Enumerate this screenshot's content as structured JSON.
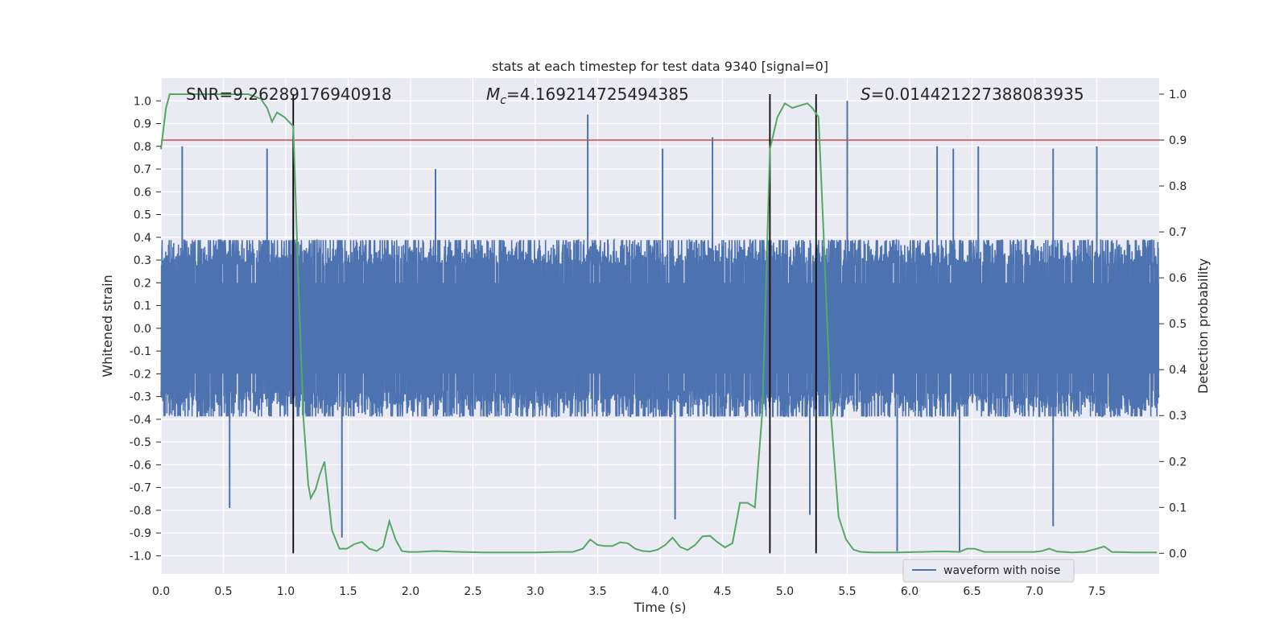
{
  "chart_data": {
    "type": "line",
    "title": "stats at each timestep for test data 9340 [signal=0]",
    "xlabel": "Time (s)",
    "ylabel": "Whitened strain",
    "ylabel_right": "Detection probability",
    "xlim": [
      0.0,
      8.0
    ],
    "ylim": [
      -1.08,
      1.1
    ],
    "ylim_right": [
      -0.045,
      1.035
    ],
    "x_ticks": [
      0.0,
      0.5,
      1.0,
      1.5,
      2.0,
      2.5,
      3.0,
      3.5,
      4.0,
      4.5,
      5.0,
      5.5,
      6.0,
      6.5,
      7.0,
      7.5
    ],
    "x_tick_labels": [
      "0.0",
      "0.5",
      "1.0",
      "1.5",
      "2.0",
      "2.5",
      "3.0",
      "3.5",
      "4.0",
      "4.5",
      "5.0",
      "5.5",
      "6.0",
      "6.5",
      "7.0",
      "7.5"
    ],
    "y_ticks": [
      1.0,
      0.9,
      0.8,
      0.7,
      0.6,
      0.5,
      0.4,
      0.3,
      0.2,
      0.1,
      0.0,
      -0.1,
      -0.2,
      -0.3,
      -0.4,
      -0.5,
      -0.6,
      -0.7,
      -0.8,
      -0.9,
      -1.0
    ],
    "y_tick_labels": [
      "1.0",
      "0.9",
      "0.8",
      "0.7",
      "0.6",
      "0.5",
      "0.4",
      "0.3",
      "0.2",
      "0.1",
      "0.0",
      "-0.1",
      "-0.2",
      "-0.3",
      "-0.4",
      "-0.5",
      "-0.6",
      "-0.7",
      "-0.8",
      "-0.9",
      "-1.0"
    ],
    "y_ticks_right": [
      1.0,
      0.9,
      0.8,
      0.7,
      0.6,
      0.5,
      0.4,
      0.3,
      0.2,
      0.1,
      0.0
    ],
    "y_tick_labels_right": [
      "1.0",
      "0.9",
      "0.8",
      "0.7",
      "0.6",
      "0.5",
      "0.4",
      "0.3",
      "0.2",
      "0.1",
      "0.0"
    ],
    "annotations": {
      "snr": "SNR=9.26289176940918",
      "mc_symbol": "M",
      "mc_sub": "c",
      "mc_value": "=4.169214725494385",
      "s_symbol": "S",
      "s_value": "=0.014421227388083935"
    },
    "legend": {
      "label": "waveform with noise",
      "position": "lower-right"
    },
    "threshold": {
      "value": 0.9,
      "axis": "right",
      "color": "#c44e52"
    },
    "vertical_lines": [
      1.06,
      4.88,
      5.25
    ],
    "noise_series": {
      "name": "waveform with noise",
      "color": "#4c72b0",
      "dense_band": [
        -0.2,
        0.2
      ],
      "typical_peak": 0.5,
      "spikes": [
        {
          "x": 0.17,
          "y": 0.8
        },
        {
          "x": 0.85,
          "y": 0.79
        },
        {
          "x": 1.06,
          "y": 0.79
        },
        {
          "x": 2.2,
          "y": 0.7
        },
        {
          "x": 3.42,
          "y": 0.94
        },
        {
          "x": 4.02,
          "y": 0.79
        },
        {
          "x": 4.42,
          "y": 0.84
        },
        {
          "x": 5.5,
          "y": 1.0
        },
        {
          "x": 6.22,
          "y": 0.8
        },
        {
          "x": 6.35,
          "y": 0.79
        },
        {
          "x": 6.55,
          "y": 0.8
        },
        {
          "x": 7.15,
          "y": 0.79
        },
        {
          "x": 7.5,
          "y": 0.8
        },
        {
          "x": 1.45,
          "y": -0.92
        },
        {
          "x": 4.12,
          "y": -0.84
        },
        {
          "x": 5.9,
          "y": -0.98
        },
        {
          "x": 6.4,
          "y": -0.98
        },
        {
          "x": 7.15,
          "y": -0.87
        },
        {
          "x": 0.55,
          "y": -0.79
        },
        {
          "x": 5.2,
          "y": -0.82
        }
      ]
    },
    "probability_series": {
      "name": "Detection probability",
      "color": "#55a868",
      "x": [
        0.0,
        0.04,
        0.07,
        0.15,
        0.3,
        0.5,
        0.7,
        0.8,
        0.85,
        0.89,
        0.93,
        0.99,
        1.06,
        1.1,
        1.14,
        1.18,
        1.2,
        1.24,
        1.27,
        1.31,
        1.37,
        1.43,
        1.49,
        1.55,
        1.61,
        1.67,
        1.73,
        1.78,
        1.83,
        1.88,
        1.93,
        1.98,
        2.05,
        2.2,
        2.4,
        2.6,
        2.8,
        3.0,
        3.2,
        3.3,
        3.38,
        3.44,
        3.5,
        3.56,
        3.62,
        3.68,
        3.74,
        3.8,
        3.86,
        3.92,
        3.98,
        4.04,
        4.1,
        4.16,
        4.22,
        4.28,
        4.34,
        4.4,
        4.46,
        4.52,
        4.58,
        4.64,
        4.7,
        4.76,
        4.82,
        4.88,
        4.94,
        5.0,
        5.06,
        5.12,
        5.18,
        5.22,
        5.27,
        5.31,
        5.37,
        5.43,
        5.49,
        5.55,
        5.61,
        5.7,
        5.9,
        6.1,
        6.2,
        6.3,
        6.4,
        6.46,
        6.52,
        6.6,
        6.8,
        7.0,
        7.06,
        7.12,
        7.18,
        7.3,
        7.4,
        7.5,
        7.56,
        7.62,
        7.8,
        7.98
      ],
      "y": [
        0.88,
        0.97,
        1.0,
        1.0,
        1.0,
        1.0,
        1.0,
        0.99,
        0.97,
        0.94,
        0.96,
        0.95,
        0.93,
        0.6,
        0.3,
        0.15,
        0.12,
        0.14,
        0.17,
        0.2,
        0.05,
        0.01,
        0.01,
        0.02,
        0.025,
        0.01,
        0.005,
        0.015,
        0.07,
        0.03,
        0.005,
        0.003,
        0.003,
        0.005,
        0.003,
        0.002,
        0.002,
        0.002,
        0.003,
        0.003,
        0.01,
        0.03,
        0.018,
        0.016,
        0.016,
        0.024,
        0.022,
        0.01,
        0.005,
        0.004,
        0.008,
        0.018,
        0.034,
        0.014,
        0.007,
        0.018,
        0.037,
        0.038,
        0.024,
        0.013,
        0.022,
        0.11,
        0.11,
        0.1,
        0.31,
        0.88,
        0.95,
        0.98,
        0.97,
        0.975,
        0.98,
        0.97,
        0.95,
        0.7,
        0.3,
        0.08,
        0.03,
        0.008,
        0.003,
        0.002,
        0.002,
        0.003,
        0.004,
        0.004,
        0.003,
        0.01,
        0.01,
        0.003,
        0.003,
        0.003,
        0.005,
        0.01,
        0.004,
        0.002,
        0.003,
        0.01,
        0.015,
        0.003,
        0.002,
        0.002
      ]
    }
  }
}
